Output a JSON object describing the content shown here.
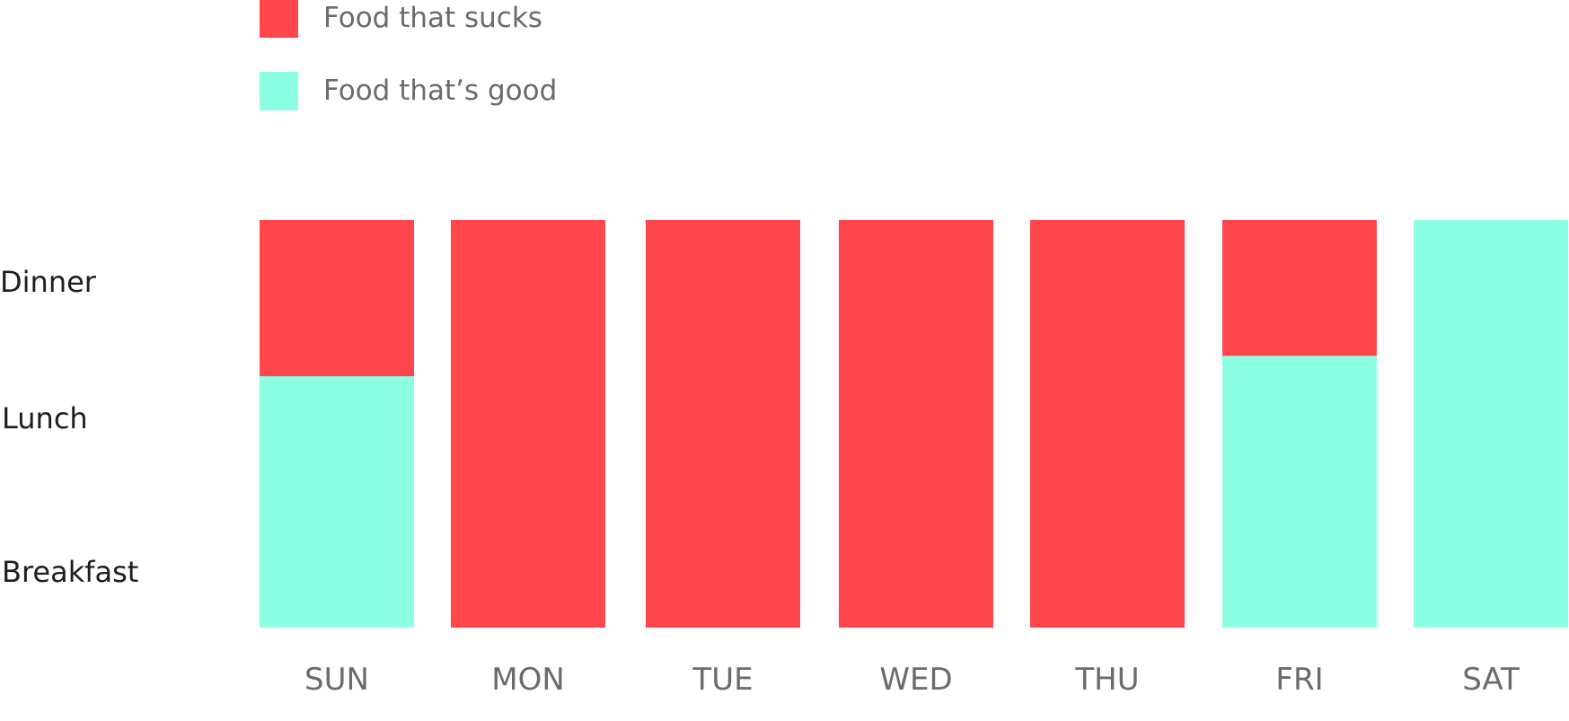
{
  "chart_data": {
    "type": "bar",
    "stacked": true,
    "categories": [
      "SUN",
      "MON",
      "TUE",
      "WED",
      "THU",
      "FRI",
      "SAT"
    ],
    "y_categories": [
      "Breakfast",
      "Lunch",
      "Dinner"
    ],
    "ylim": [
      0,
      3
    ],
    "legend_position": "top-left",
    "grid": false,
    "title": "",
    "xlabel": "",
    "ylabel": "",
    "series": [
      {
        "name": "Food that’s good",
        "color": "#8cffe2",
        "values": [
          1.85,
          0,
          0,
          0,
          0,
          2.0,
          3.0
        ]
      },
      {
        "name": "Food that sucks",
        "color": "#ff464c",
        "values": [
          1.15,
          3.0,
          3.0,
          3.0,
          3.0,
          1.0,
          0
        ]
      }
    ]
  },
  "legend": {
    "items": [
      {
        "label": "Food that sucks",
        "color": "#ff464c"
      },
      {
        "label": "Food that’s good",
        "color": "#8cffe2"
      }
    ]
  },
  "meal_axis": {
    "labels": [
      "Dinner",
      "Lunch",
      "Breakfast"
    ]
  },
  "day_axis": {
    "labels": [
      "SUN",
      "MON",
      "TUE",
      "WED",
      "THU",
      "FRI",
      "SAT"
    ]
  }
}
